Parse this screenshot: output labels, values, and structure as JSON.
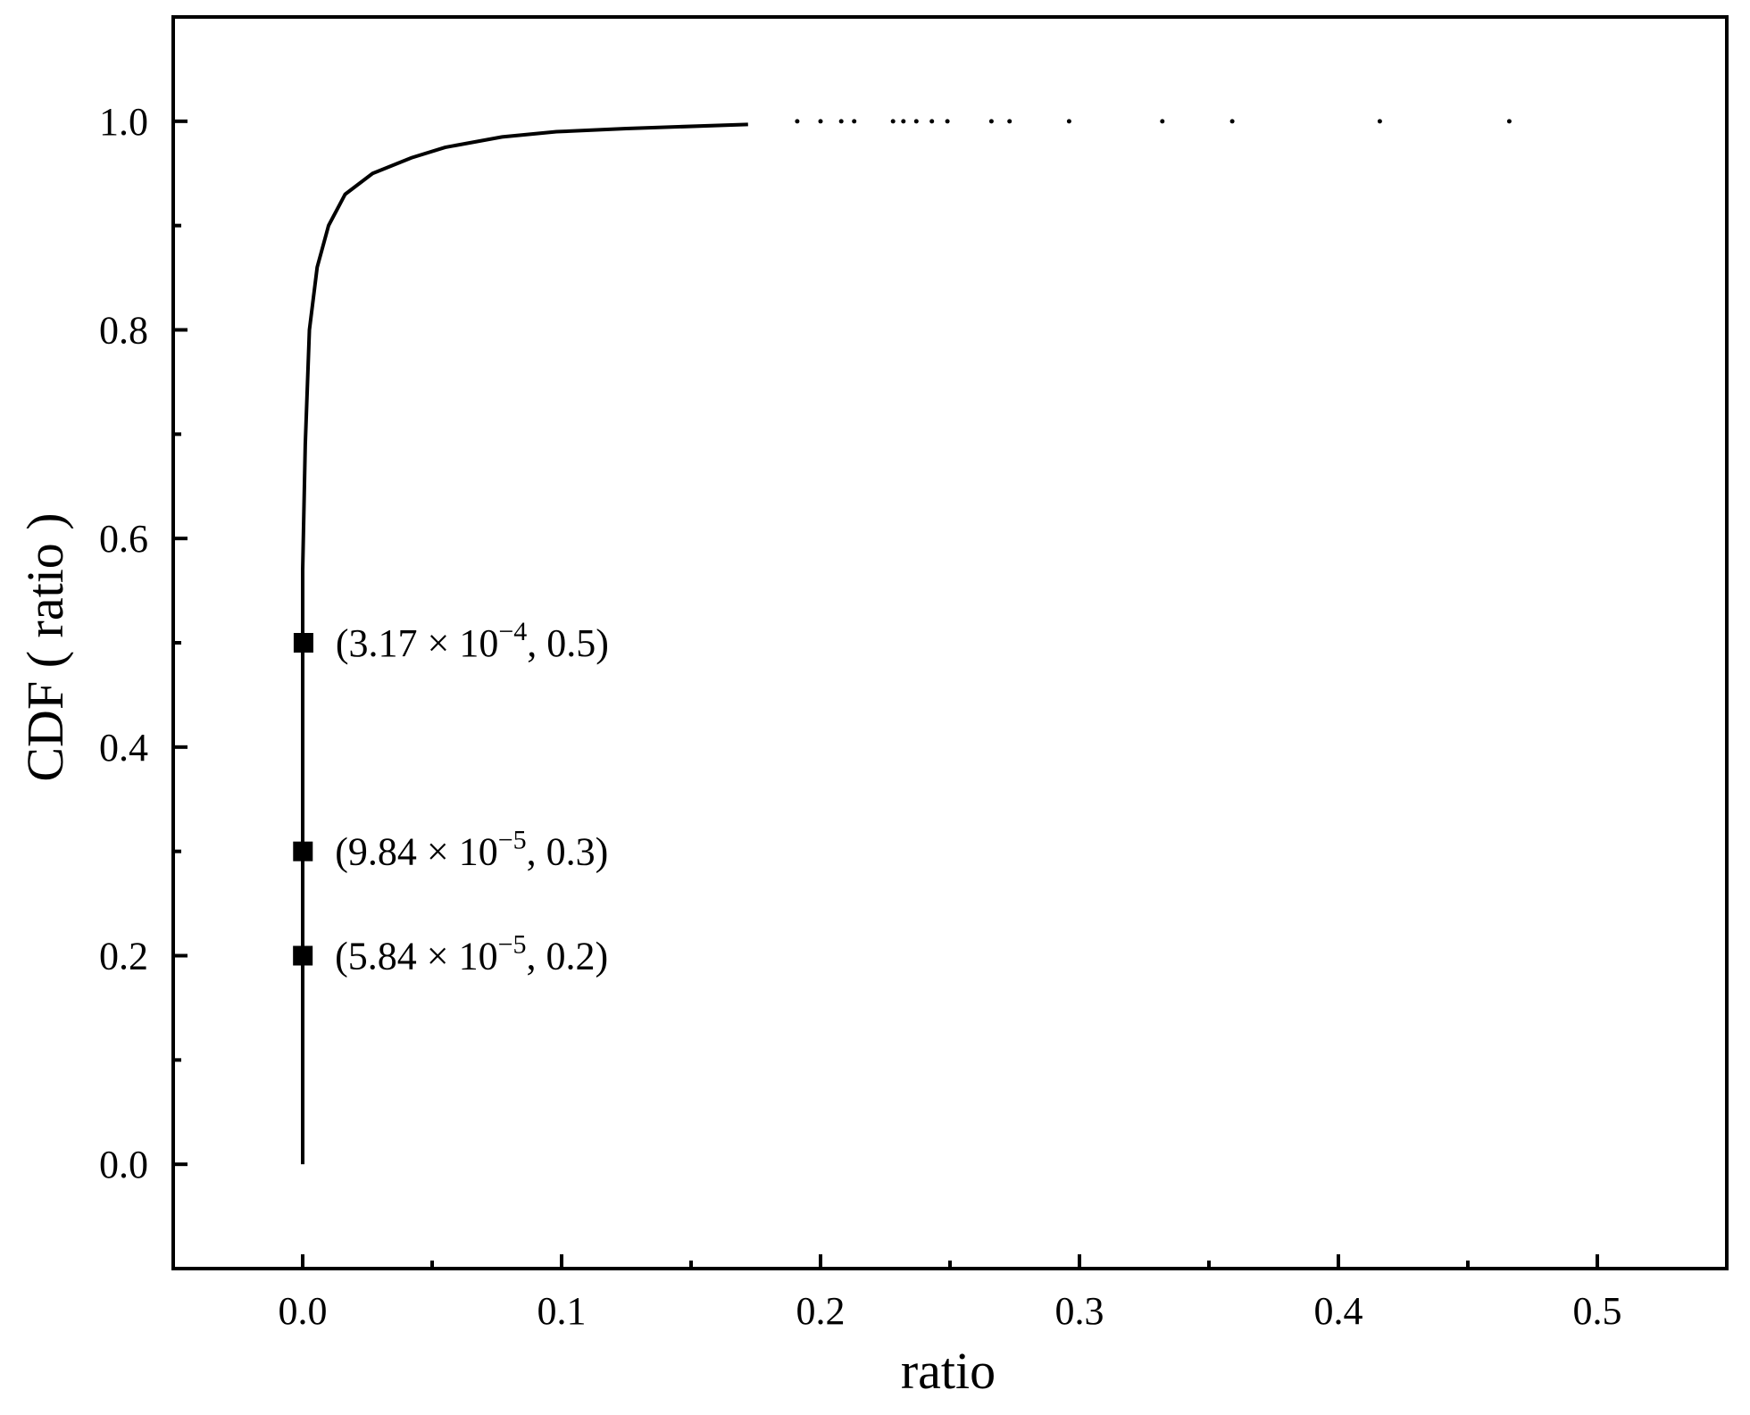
{
  "chart_data": {
    "type": "line",
    "x_label": "ratio",
    "y_label": "CDF ( ratio )",
    "xlim": [
      -0.05,
      0.55
    ],
    "ylim": [
      -0.1,
      1.1
    ],
    "xticks": [
      {
        "value": 0,
        "label": "0.0"
      },
      0.1,
      0.2,
      0.3,
      0.4,
      0.5
    ],
    "yticks": [
      {
        "value": 0,
        "label": "0.0"
      },
      0.2,
      0.4,
      0.6,
      0.8,
      {
        "value": 1,
        "label": "1.0"
      }
    ],
    "x_minor_ticks": [
      0.05,
      0.15,
      0.25,
      0.35,
      0.45
    ],
    "y_minor_ticks": [
      0.1,
      0.3,
      0.5,
      0.7,
      0.9
    ],
    "color": "#000000",
    "line": {
      "x": [
        0,
        0,
        0.001,
        0.0026,
        0.0056,
        0.01,
        0.0164,
        0.027,
        0.042,
        0.055,
        0.077,
        0.098,
        0.125,
        0.172
      ],
      "y": [
        0,
        0.57,
        0.69,
        0.8,
        0.86,
        0.9,
        0.93,
        0.95,
        0.965,
        0.975,
        0.985,
        0.99,
        0.993,
        0.997
      ]
    },
    "points": {
      "x": [
        0.191,
        0.2,
        0.208,
        0.213,
        0.228,
        0.232,
        0.237,
        0.243,
        0.249,
        0.266,
        0.273,
        0.296,
        0.332,
        0.359,
        0.416,
        0.466
      ],
      "y": [
        1,
        1,
        1,
        1,
        1,
        1,
        1,
        1,
        1,
        1,
        1,
        1,
        1,
        1,
        1,
        1
      ]
    },
    "markers": [
      {
        "x": 0.000317,
        "y": 0.5,
        "label_base": "(3.17 × 10",
        "label_exp": "−4",
        "label_rest": ", 0.5)"
      },
      {
        "x": 9.84e-05,
        "y": 0.3,
        "label_base": "(9.84 × 10",
        "label_exp": "−5",
        "label_rest": ", 0.3)"
      },
      {
        "x": 5.84e-05,
        "y": 0.2,
        "label_base": "(5.84 × 10",
        "label_exp": "−5",
        "label_rest": ", 0.2)"
      }
    ]
  }
}
